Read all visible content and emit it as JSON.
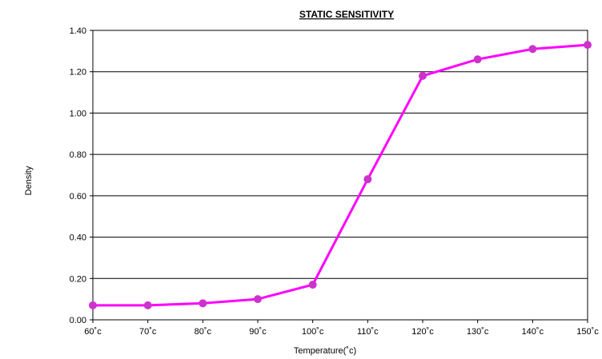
{
  "chart_data": {
    "type": "line",
    "title": "STATIC SENSITIVITY",
    "xlabel": "Temperature(˚c)",
    "ylabel": "Density",
    "categories": [
      "60˚c",
      "70˚c",
      "80˚c",
      "90˚c",
      "100˚c",
      "110˚c",
      "120˚c",
      "130˚c",
      "140˚c",
      "150˚c"
    ],
    "series": [
      {
        "values": [
          0.07,
          0.07,
          0.08,
          0.1,
          0.17,
          0.68,
          1.18,
          1.26,
          1.31,
          1.33
        ]
      }
    ],
    "ylim": [
      0,
      1.4
    ],
    "yticks": [
      "0.00",
      "0.20",
      "0.40",
      "0.60",
      "0.80",
      "1.00",
      "1.20",
      "1.40"
    ],
    "grid": true,
    "line_color": "#ff00ff",
    "marker_color": "#cc33cc",
    "legend": "none"
  }
}
